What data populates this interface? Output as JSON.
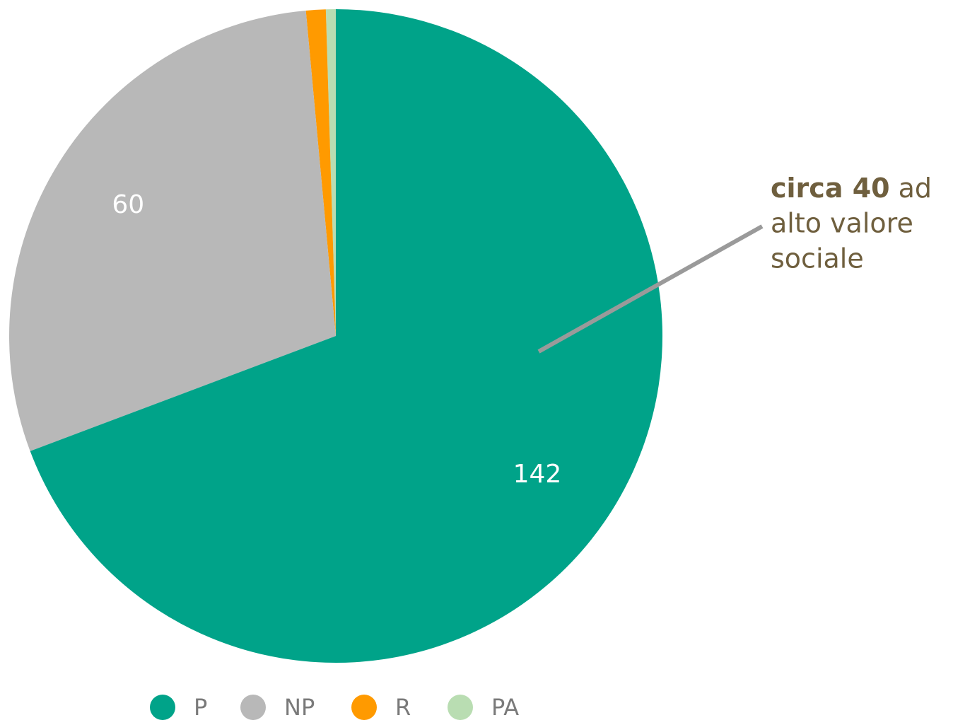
{
  "chart_data": {
    "type": "pie",
    "categories": [
      "P",
      "NP",
      "R",
      "PA"
    ],
    "values": [
      142,
      60,
      2,
      1
    ],
    "value_labels": [
      "142",
      "60",
      null,
      null
    ],
    "colors": [
      "#00a389",
      "#b8b8b8",
      "#ff9a00",
      "#b9ddb2"
    ],
    "annotation": {
      "bold": "circa 40",
      "lines": [
        "ad",
        "alto valore",
        "sociale"
      ]
    },
    "legend": "bottom"
  }
}
